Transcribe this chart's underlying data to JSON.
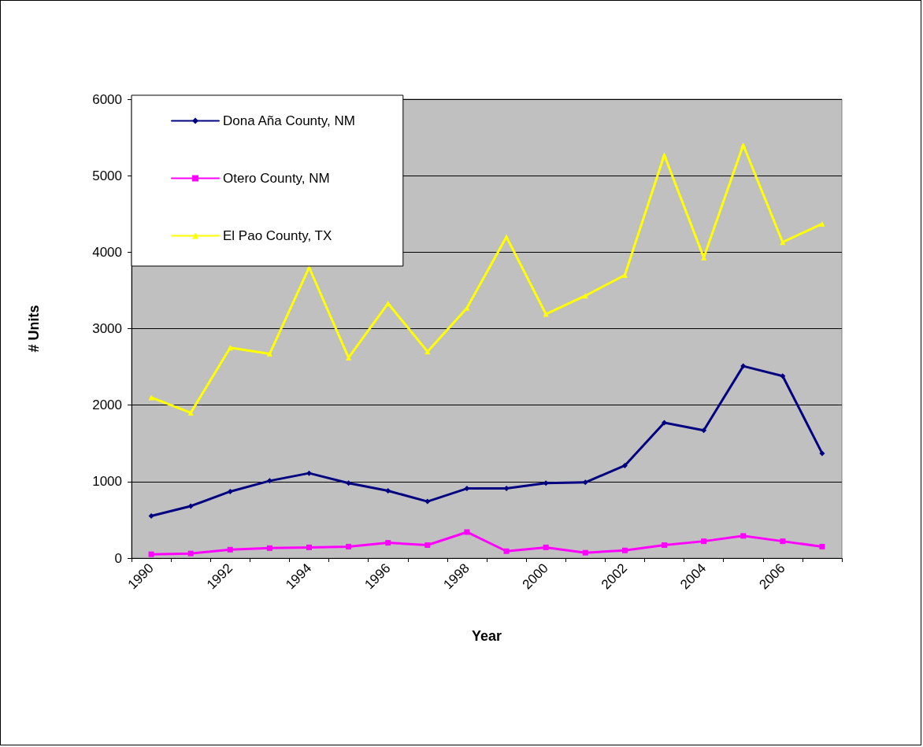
{
  "chart_data": {
    "type": "line",
    "xlabel": "Year",
    "ylabel": "# Units",
    "categories": [
      "1990",
      null,
      "1992",
      null,
      "1994",
      null,
      "1996",
      null,
      "1998",
      null,
      "2000",
      null,
      "2002",
      null,
      "2004",
      null,
      "2006",
      null
    ],
    "series": [
      {
        "name": "Dona Aña County, NM",
        "color": "#000080",
        "marker": "diamond",
        "values": [
          550,
          680,
          870,
          1010,
          1110,
          980,
          880,
          740,
          910,
          910,
          980,
          990,
          1210,
          1770,
          1670,
          2510,
          2380,
          1370
        ]
      },
      {
        "name": "Otero County, NM",
        "color": "#ff00ff",
        "marker": "square",
        "values": [
          50,
          60,
          110,
          130,
          140,
          150,
          200,
          170,
          340,
          90,
          140,
          70,
          100,
          170,
          220,
          290,
          220,
          150
        ]
      },
      {
        "name": "El Pao County, TX",
        "color": "#ffff00",
        "marker": "triangle",
        "values": [
          2100,
          1900,
          2750,
          2670,
          3800,
          2620,
          3330,
          2700,
          3270,
          4200,
          3190,
          3430,
          3700,
          5270,
          3930,
          5400,
          4130,
          4370
        ]
      }
    ],
    "ylim": [
      0,
      6000
    ],
    "yticks": [
      0,
      1000,
      2000,
      3000,
      4000,
      5000,
      6000
    ],
    "grid": "y",
    "legend": "top left",
    "line_style": "solid"
  }
}
